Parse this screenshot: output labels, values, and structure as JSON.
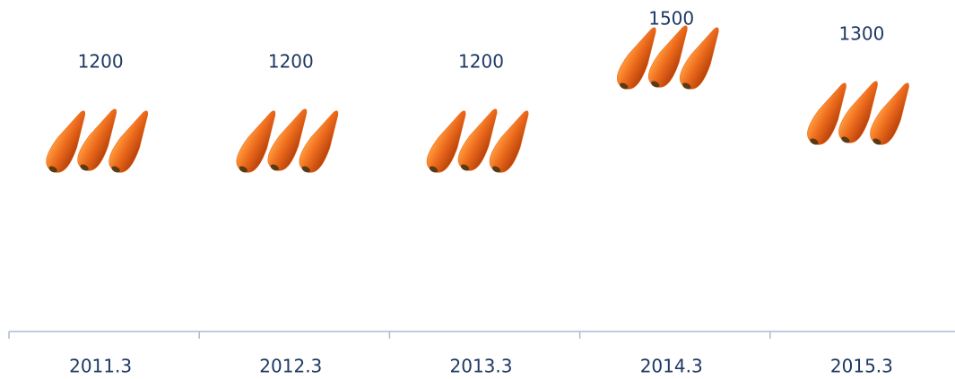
{
  "chart_data": {
    "type": "pictograph",
    "categories": [
      "2011.3",
      "2012.3",
      "2013.3",
      "2014.3",
      "2015.3"
    ],
    "values": [
      1200,
      1200,
      1200,
      1500,
      1300
    ],
    "color": "#e8661a",
    "ylim": [
      700,
      1700
    ]
  }
}
